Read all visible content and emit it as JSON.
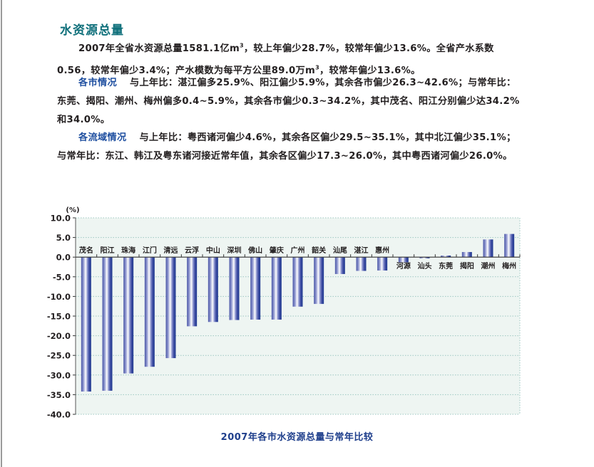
{
  "section": {
    "title": "水资源总量",
    "paragraphs": [
      {
        "keyword": "",
        "text": "2007年全省水资源总量1581.1亿m³，较上年偏少28.7%，较常年偏少13.6%。全省产水系数0.56，较常年偏少3.4%；产水模数为每平方公里89.0万m³，较常年偏少13.6%。"
      },
      {
        "keyword": "各市情况",
        "text": "与上年比：湛江偏多25.9%、阳江偏少5.9%，其余各市偏少26.3~42.6%；与常年比：东莞、揭阳、潮州、梅州偏多0.4~5.9%，其余各市偏少0.3~34.2%，其中茂名、阳江分别偏少达34.2%和34.0%。"
      },
      {
        "keyword": "各流域情况",
        "text": "与上年比：粤西诸河偏少4.6%，其余各区偏少29.5~35.1%，其中北江偏少35.1%；与常年比：东江、韩江及粤东诸河接近常年值，其余各区偏少17.3~26.0%，其中粤西诸河偏少26.0%。"
      }
    ]
  },
  "colors": {
    "title": "#0e6f7a",
    "keyword": "#1f4fa0",
    "caption": "#1f3f8c",
    "plot_bg": "#eef5f2",
    "grid": "#9cc7c1",
    "bar_dark": "#1f3a8f",
    "bar_light": "#ffffff",
    "bar_mid": "#7b83c4"
  },
  "chart_data": {
    "type": "bar",
    "title": "2007年各市水资源总量与常年比较",
    "xlabel": "",
    "ylabel": "(%)",
    "ylim": [
      -40,
      10
    ],
    "yticks": [
      10.0,
      5.0,
      0.0,
      -5.0,
      -10.0,
      -15.0,
      -20.0,
      -25.0,
      -30.0,
      -35.0,
      -40.0
    ],
    "ytick_labels": [
      "10.0",
      "5.0",
      "0.0",
      "-5.0",
      "-10.0",
      "-15.0",
      "-20.0",
      "-25.0",
      "-30.0",
      "-35.0",
      "-40.0"
    ],
    "grid": true,
    "legend": null,
    "categories": [
      "茂名",
      "阳江",
      "珠海",
      "江门",
      "清远",
      "云浮",
      "中山",
      "深圳",
      "佛山",
      "肇庆",
      "广州",
      "韶关",
      "汕尾",
      "湛江",
      "惠州",
      "河源",
      "汕头",
      "东莞",
      "揭阳",
      "潮州",
      "梅州"
    ],
    "values": [
      -34.2,
      -34.0,
      -29.6,
      -27.9,
      -25.7,
      -17.6,
      -16.5,
      -16.0,
      -15.9,
      -15.9,
      -12.6,
      -11.9,
      -4.3,
      -3.5,
      -3.4,
      -1.3,
      -0.3,
      0.4,
      1.3,
      4.5,
      5.9
    ]
  }
}
